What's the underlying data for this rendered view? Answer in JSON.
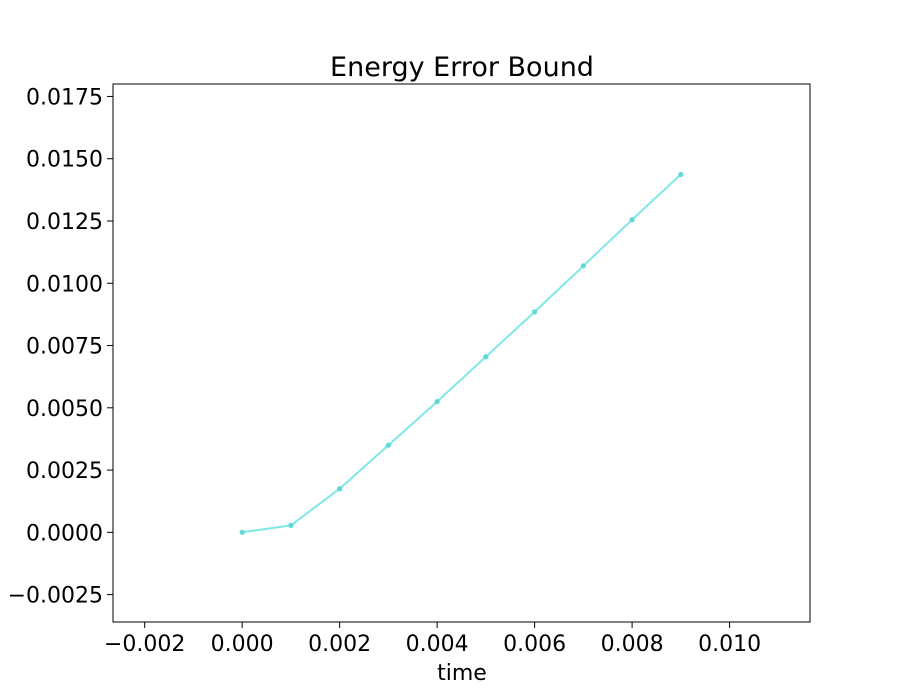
{
  "chart_data": {
    "type": "line",
    "title": "Energy Error Bound",
    "xlabel": "time",
    "ylabel": "",
    "xlim": [
      -0.00265,
      0.01165
    ],
    "ylim": [
      -0.0036,
      0.018
    ],
    "x_ticks": [
      -0.002,
      0.0,
      0.002,
      0.004,
      0.006,
      0.008,
      0.01
    ],
    "x_tick_labels": [
      "−0.002",
      "0.000",
      "0.002",
      "0.004",
      "0.006",
      "0.008",
      "0.010"
    ],
    "y_ticks": [
      -0.0025,
      0.0,
      0.0025,
      0.005,
      0.0075,
      0.01,
      0.0125,
      0.015,
      0.0175
    ],
    "y_tick_labels": [
      "−0.0025",
      "0.0000",
      "0.0025",
      "0.0050",
      "0.0075",
      "0.0100",
      "0.0125",
      "0.0150",
      "0.0175"
    ],
    "grid": false,
    "series": [
      {
        "color": "#7ee8e8",
        "marker_color": "#5fd8d8",
        "x": [
          0.0,
          0.001,
          0.002,
          0.003,
          0.004,
          0.005,
          0.006,
          0.007,
          0.008,
          0.009
        ],
        "y": [
          0.0,
          0.00028,
          0.00175,
          0.0035,
          0.00525,
          0.00705,
          0.00885,
          0.0107,
          0.01255,
          0.01437
        ]
      }
    ]
  }
}
